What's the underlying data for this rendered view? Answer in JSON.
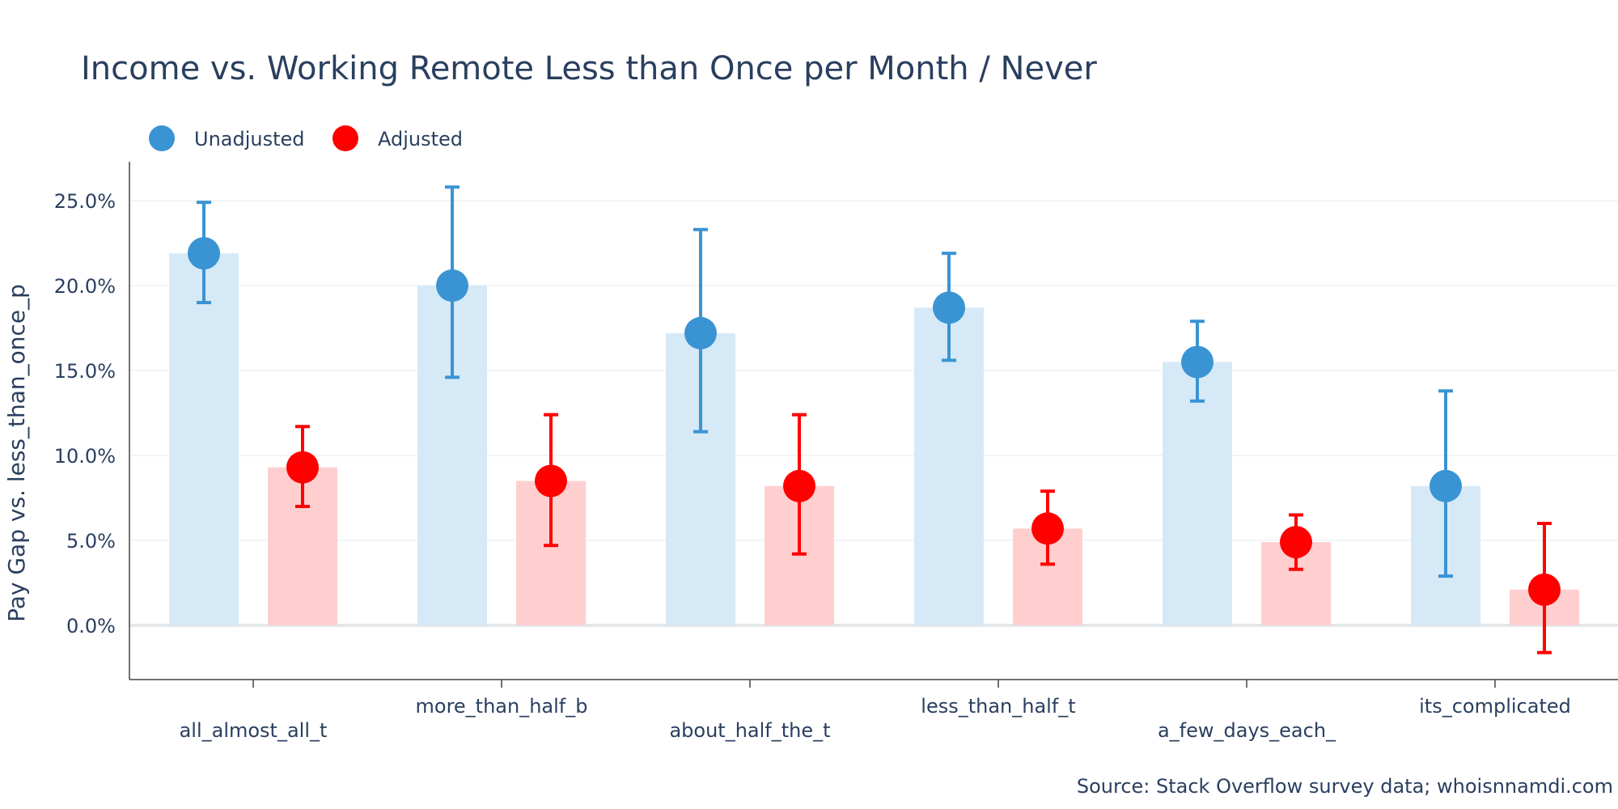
{
  "chart_data": {
    "type": "bar",
    "title": "Income vs. Working Remote Less than Once per Month / Never",
    "xlabel": "",
    "ylabel": "Pay Gap vs. less_than_once_p",
    "ylim": [
      -0.032,
      0.272
    ],
    "y_tick_values": [
      0,
      0.05,
      0.1,
      0.15,
      0.2,
      0.25
    ],
    "y_tick_labels": [
      "0.0%",
      "5.0%",
      "10.0%",
      "15.0%",
      "20.0%",
      "25.0%"
    ],
    "grid": true,
    "legend_position": "top-left",
    "categories": [
      "all_almost_all_t",
      "more_than_half_b",
      "about_half_the_t",
      "less_than_half_t",
      "a_few_days_each_",
      "its_complicated"
    ],
    "series": [
      {
        "name": "Unadjusted",
        "marker_color": "#3a94d4",
        "bar_color": "#d6e9f7",
        "values": [
          0.219,
          0.2,
          0.172,
          0.187,
          0.155,
          0.082
        ],
        "error_low": [
          0.19,
          0.146,
          0.114,
          0.156,
          0.132,
          0.029
        ],
        "error_high": [
          0.249,
          0.258,
          0.233,
          0.219,
          0.179,
          0.138
        ]
      },
      {
        "name": "Adjusted",
        "marker_color": "#ff0000",
        "bar_color": "#ffcfd0",
        "values": [
          0.093,
          0.085,
          0.082,
          0.057,
          0.049,
          0.021
        ],
        "error_low": [
          0.07,
          0.047,
          0.042,
          0.036,
          0.033,
          -0.016
        ],
        "error_high": [
          0.117,
          0.124,
          0.124,
          0.079,
          0.065,
          0.06
        ]
      }
    ],
    "annotation": "Source: Stack Overflow survey data; whoisnnamdi.com"
  }
}
